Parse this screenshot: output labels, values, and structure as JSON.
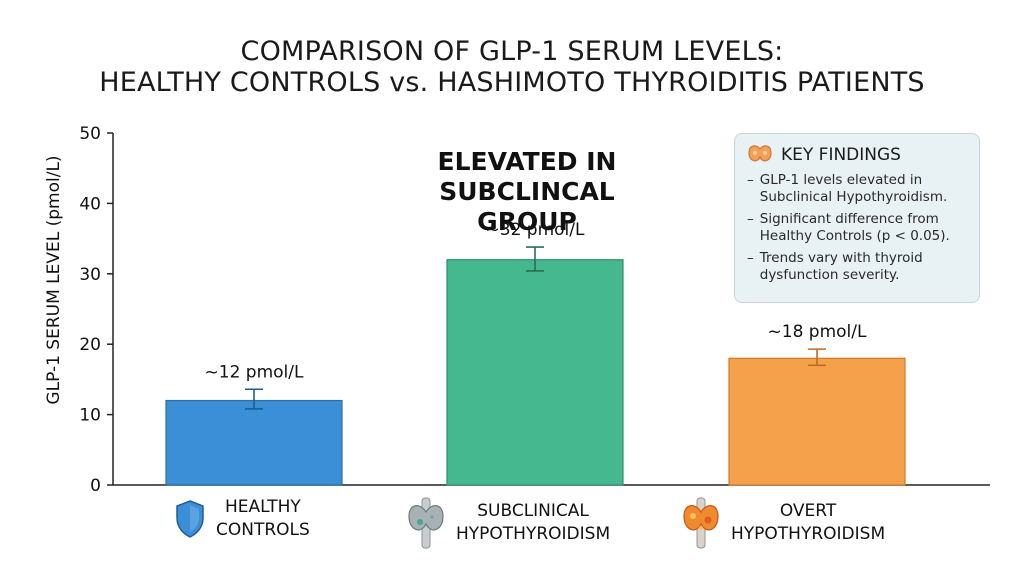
{
  "title_line1": "COMPARISON OF GLP-1 SERUM LEVELS:",
  "title_line2": "HEALTHY CONTROLS vs. HASHIMOTO THYROIDITIS PATIENTS",
  "callout": {
    "line1": "ELEVATED IN",
    "line2": "SUBCLINCAL GROUP"
  },
  "key_findings": {
    "title": "KEY FINDINGS",
    "icon": "thyroid-icon",
    "items": [
      {
        "line1": "GLP-1 levels elevated in",
        "line2": "Subclinical Hypothyroidism."
      },
      {
        "line1": "Significant difference from",
        "line2": "Healthy Controls (p < 0.05)."
      },
      {
        "line1": "Trends vary with thyroid",
        "line2": "dysfunction severity."
      }
    ]
  },
  "category_labels": [
    {
      "line1": "HEALTHY",
      "line2": "CONTROLS",
      "icon": "shield-icon"
    },
    {
      "line1": "SUBCLINICAL",
      "line2": "HYPOTHYROIDISM",
      "icon": "thyroid-gray-icon"
    },
    {
      "line1": "OVERT",
      "line2": "HYPOTHYROIDISM",
      "icon": "thyroid-inflamed-icon"
    }
  ],
  "colors": {
    "healthy": "#3b8fd6",
    "subclinical": "#45b890",
    "overt": "#f5a04a"
  },
  "chart_data": {
    "type": "bar",
    "categories": [
      "HEALTHY CONTROLS",
      "SUBCLINICAL HYPOTHYROIDISM",
      "OVERT HYPOTHYROIDISM"
    ],
    "values": [
      12,
      32,
      18
    ],
    "error_low": [
      10.8,
      30.4,
      17.0
    ],
    "error_high": [
      13.6,
      33.8,
      19.3
    ],
    "data_labels": [
      "~12 pmol/L",
      "~32 pmol/L",
      "~18 pmol/L"
    ],
    "ylabel": "GLP-1 SERUM LEVEL (pmol/L)",
    "xlabel": "",
    "ylim": [
      0,
      50
    ],
    "yticks": [
      0,
      10,
      20,
      30,
      40,
      50
    ],
    "grid": false,
    "legend": "none"
  }
}
